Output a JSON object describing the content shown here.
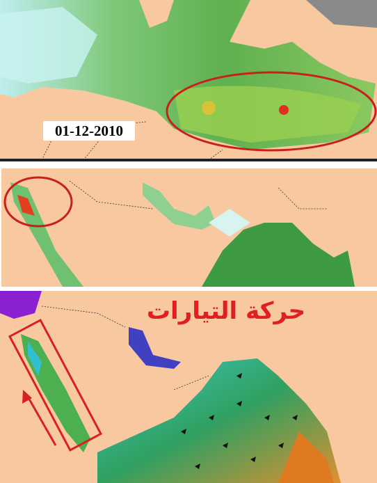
{
  "map": {
    "date_label": "01-12-2010",
    "title": "حركة التيارات"
  }
}
